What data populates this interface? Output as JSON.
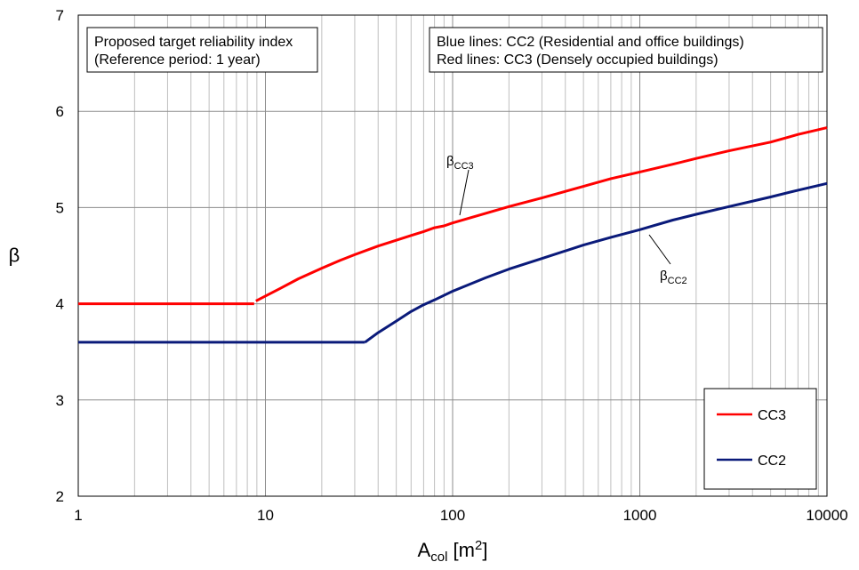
{
  "chart_data": {
    "type": "line",
    "xscale": "log",
    "xlim": [
      1,
      10000
    ],
    "ylim": [
      2,
      7
    ],
    "grid": true,
    "xlabel": "A",
    "xlabel_sub": "col",
    "xlabel_unit_pre": " [m",
    "xlabel_unit_sup": "2",
    "xlabel_unit_post": "]",
    "ylabel": "β",
    "xticks": [
      1,
      10,
      100,
      1000,
      10000
    ],
    "xtick_labels": [
      "1",
      "10",
      "100",
      "1000",
      "10000"
    ],
    "yticks": [
      2,
      3,
      4,
      5,
      6,
      7
    ],
    "ytick_labels": [
      "2",
      "3",
      "4",
      "5",
      "6",
      "7"
    ],
    "notes": {
      "left": [
        "Proposed target reliability index",
        "(Reference period: 1 year)"
      ],
      "right": [
        "Blue lines: CC2 (Residential and office buildings)",
        "Red lines: CC3 (Densely occupied buildings)"
      ]
    },
    "annotations": [
      {
        "label": "β",
        "sub": "CC3",
        "x": 150,
        "y": 4.92
      },
      {
        "label": "β",
        "sub": "CC2",
        "x": 800,
        "y": 4.73
      }
    ],
    "legend_position": "bottom-right",
    "series": [
      {
        "name": "CC3",
        "color": "#ff0000",
        "segments": [
          {
            "x": [
              1,
              8.7
            ],
            "y": [
              4.0,
              4.0
            ]
          },
          {
            "x": [
              8.9,
              12,
              15,
              20,
              25,
              30,
              40,
              50,
              60,
              70,
              80,
              90,
              100,
              150,
              200,
              300,
              500,
              700,
              1000,
              1500,
              2000,
              3000,
              5000,
              7000,
              10000
            ],
            "y": [
              4.03,
              4.16,
              4.26,
              4.37,
              4.45,
              4.51,
              4.6,
              4.66,
              4.71,
              4.75,
              4.79,
              4.81,
              4.84,
              4.94,
              5.01,
              5.1,
              5.22,
              5.3,
              5.37,
              5.45,
              5.51,
              5.59,
              5.68,
              5.76,
              5.83
            ]
          }
        ]
      },
      {
        "name": "CC2",
        "color": "#0a1a7a",
        "segments": [
          {
            "x": [
              1,
              34
            ],
            "y": [
              3.6,
              3.6
            ]
          },
          {
            "x": [
              34,
              40,
              50,
              60,
              70,
              80,
              100,
              150,
              200,
              300,
              500,
              700,
              1000,
              1500,
              2000,
              3000,
              5000,
              7000,
              10000
            ],
            "y": [
              3.6,
              3.7,
              3.82,
              3.92,
              3.99,
              4.04,
              4.13,
              4.27,
              4.36,
              4.47,
              4.61,
              4.69,
              4.77,
              4.87,
              4.93,
              5.01,
              5.11,
              5.18,
              5.25
            ]
          }
        ]
      }
    ]
  }
}
